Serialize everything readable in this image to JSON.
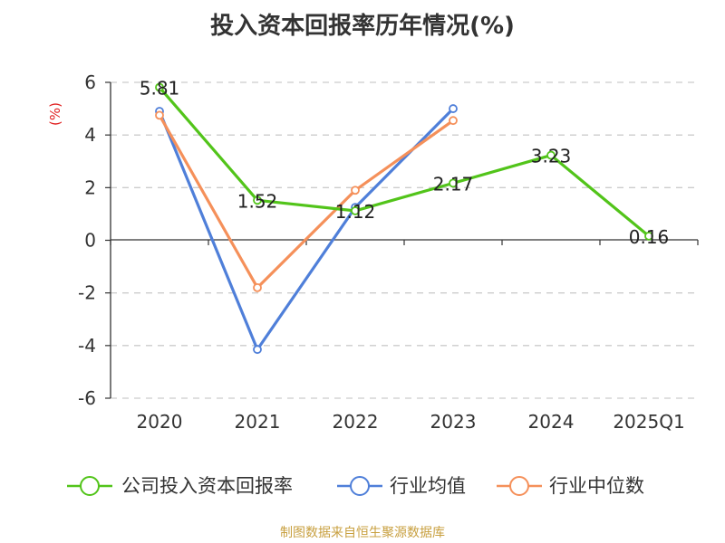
{
  "chart_data": {
    "type": "line",
    "title": "投入资本回报率历年情况(%)",
    "ylabel": "(%)",
    "categories": [
      "2020",
      "2021",
      "2022",
      "2023",
      "2024",
      "2025Q1"
    ],
    "ylim": [
      -6,
      6
    ],
    "yticks": [
      6,
      4,
      2,
      0,
      -2,
      -4,
      -6
    ],
    "grid": true,
    "legend_position": "bottom",
    "series": [
      {
        "name": "公司投入资本回报率",
        "color": "#52c41a",
        "values": [
          5.81,
          1.52,
          1.12,
          2.17,
          3.23,
          0.16
        ],
        "labels": [
          "5.81",
          "1.52",
          "1.12",
          "2.17",
          "3.23",
          "0.16"
        ]
      },
      {
        "name": "行业均值",
        "color": "#4f7fd9",
        "values": [
          4.9,
          -4.15,
          1.25,
          5.0,
          null,
          null
        ]
      },
      {
        "name": "行业中位数",
        "color": "#f5905a",
        "values": [
          4.75,
          -1.8,
          1.9,
          4.55,
          null,
          null
        ]
      }
    ]
  },
  "source": "制图数据来自恒生聚源数据库"
}
